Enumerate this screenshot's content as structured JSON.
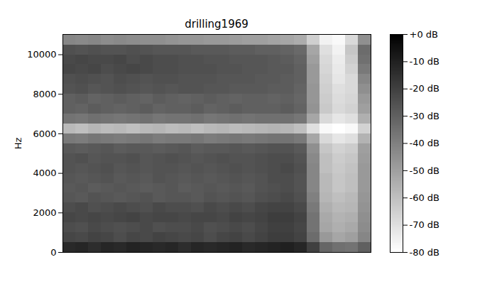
{
  "chart_data": {
    "type": "heatmap",
    "title": "drilling1969",
    "y_label": "Hz",
    "tick_labels": "y",
    "y": [
      0,
      500,
      1000,
      1500,
      2000,
      2500,
      3000,
      3500,
      4000,
      4500,
      5000,
      5500,
      6000,
      6500,
      7000,
      7500,
      8000,
      8500,
      9000,
      9500,
      10000,
      10500
    ],
    "ylim": [
      0,
      11025
    ],
    "yticks": [
      0,
      2000,
      4000,
      6000,
      8000,
      10000
    ],
    "cells": [
      [
        -13,
        -12,
        -14,
        -12,
        -13,
        -11,
        -12,
        -13,
        -12,
        -14,
        -12,
        -13,
        -12,
        -11,
        -13,
        -12,
        -11,
        -10,
        -12,
        -20,
        -32,
        -35,
        -36,
        -30
      ],
      [
        -22,
        -23,
        -21,
        -22,
        -24,
        -22,
        -23,
        -21,
        -22,
        -23,
        -22,
        -24,
        -22,
        -21,
        -23,
        -21,
        -19,
        -19,
        -21,
        -34,
        -48,
        -52,
        -50,
        -42
      ],
      [
        -24,
        -25,
        -23,
        -24,
        -25,
        -24,
        -23,
        -25,
        -24,
        -24,
        -23,
        -25,
        -24,
        -23,
        -24,
        -22,
        -20,
        -20,
        -22,
        -36,
        -52,
        -55,
        -53,
        -44
      ],
      [
        -22,
        -23,
        -22,
        -23,
        -22,
        -21,
        -23,
        -22,
        -22,
        -23,
        -22,
        -22,
        -23,
        -21,
        -22,
        -21,
        -19,
        -19,
        -21,
        -36,
        -53,
        -56,
        -55,
        -45
      ],
      [
        -24,
        -23,
        -25,
        -24,
        -23,
        -24,
        -25,
        -23,
        -24,
        -24,
        -25,
        -23,
        -24,
        -23,
        -24,
        -22,
        -21,
        -21,
        -23,
        -38,
        -55,
        -58,
        -57,
        -46
      ],
      [
        -27,
        -28,
        -26,
        -27,
        -28,
        -27,
        -26,
        -28,
        -27,
        -27,
        -28,
        -26,
        -27,
        -26,
        -27,
        -25,
        -24,
        -23,
        -25,
        -40,
        -57,
        -60,
        -58,
        -47
      ],
      [
        -28,
        -27,
        -29,
        -28,
        -27,
        -28,
        -29,
        -28,
        -27,
        -29,
        -28,
        -27,
        -28,
        -27,
        -28,
        -26,
        -25,
        -24,
        -26,
        -42,
        -58,
        -62,
        -60,
        -48
      ],
      [
        -27,
        -28,
        -27,
        -26,
        -28,
        -27,
        -28,
        -26,
        -27,
        -28,
        -27,
        -28,
        -27,
        -26,
        -27,
        -26,
        -24,
        -24,
        -26,
        -42,
        -58,
        -62,
        -60,
        -48
      ],
      [
        -26,
        -27,
        -26,
        -25,
        -27,
        -26,
        -27,
        -26,
        -26,
        -27,
        -26,
        -27,
        -26,
        -25,
        -26,
        -25,
        -24,
        -23,
        -25,
        -42,
        -60,
        -63,
        -61,
        -48
      ],
      [
        -26,
        -25,
        -27,
        -26,
        -26,
        -25,
        -27,
        -26,
        -25,
        -26,
        -27,
        -26,
        -25,
        -26,
        -26,
        -25,
        -24,
        -24,
        -26,
        -43,
        -60,
        -64,
        -62,
        -49
      ],
      [
        -28,
        -29,
        -28,
        -27,
        -29,
        -28,
        -28,
        -29,
        -28,
        -27,
        -29,
        -28,
        -28,
        -27,
        -28,
        -27,
        -26,
        -26,
        -28,
        -45,
        -62,
        -66,
        -64,
        -50
      ],
      [
        -38,
        -39,
        -37,
        -38,
        -39,
        -38,
        -37,
        -39,
        -38,
        -38,
        -37,
        -39,
        -38,
        -37,
        -38,
        -37,
        -36,
        -36,
        -38,
        -52,
        -68,
        -72,
        -70,
        -56
      ],
      [
        -58,
        -60,
        -57,
        -59,
        -58,
        -60,
        -58,
        -57,
        -59,
        -58,
        -60,
        -58,
        -57,
        -59,
        -58,
        -57,
        -56,
        -57,
        -60,
        -70,
        -78,
        -80,
        -78,
        -66
      ],
      [
        -36,
        -37,
        -35,
        -36,
        -37,
        -36,
        -35,
        -37,
        -36,
        -36,
        -35,
        -37,
        -36,
        -35,
        -36,
        -35,
        -35,
        -35,
        -37,
        -52,
        -68,
        -72,
        -70,
        -55
      ],
      [
        -30,
        -31,
        -29,
        -30,
        -31,
        -30,
        -29,
        -31,
        -30,
        -30,
        -29,
        -31,
        -30,
        -29,
        -30,
        -30,
        -30,
        -29,
        -31,
        -46,
        -63,
        -68,
        -66,
        -50
      ],
      [
        -30,
        -29,
        -31,
        -30,
        -29,
        -30,
        -31,
        -29,
        -30,
        -31,
        -30,
        -29,
        -30,
        -31,
        -30,
        -30,
        -31,
        -30,
        -32,
        -47,
        -64,
        -69,
        -67,
        -48
      ],
      [
        -26,
        -25,
        -27,
        -26,
        -25,
        -26,
        -27,
        -26,
        -27,
        -26,
        -26,
        -27,
        -27,
        -28,
        -28,
        -28,
        -29,
        -29,
        -31,
        -47,
        -65,
        -70,
        -68,
        -45
      ],
      [
        -25,
        -24,
        -25,
        -26,
        -24,
        -25,
        -26,
        -25,
        -25,
        -26,
        -26,
        -26,
        -27,
        -27,
        -27,
        -28,
        -28,
        -29,
        -30,
        -48,
        -66,
        -72,
        -68,
        -42
      ],
      [
        -22,
        -23,
        -22,
        -24,
        -23,
        -22,
        -23,
        -24,
        -24,
        -25,
        -25,
        -25,
        -26,
        -26,
        -27,
        -27,
        -28,
        -28,
        -30,
        -48,
        -67,
        -73,
        -66,
        -38
      ],
      [
        -23,
        -22,
        -23,
        -23,
        -22,
        -24,
        -23,
        -24,
        -24,
        -25,
        -25,
        -26,
        -26,
        -27,
        -27,
        -27,
        -28,
        -29,
        -31,
        -50,
        -68,
        -74,
        -64,
        -35
      ],
      [
        -25,
        -26,
        -25,
        -26,
        -26,
        -25,
        -26,
        -27,
        -27,
        -27,
        -28,
        -28,
        -28,
        -29,
        -29,
        -30,
        -30,
        -31,
        -33,
        -52,
        -70,
        -76,
        -62,
        -34
      ],
      [
        -42,
        -43,
        -42,
        -44,
        -43,
        -44,
        -45,
        -45,
        -46,
        -47,
        -47,
        -48,
        -48,
        -49,
        -50,
        -50,
        -51,
        -52,
        -54,
        -65,
        -76,
        -78,
        -68,
        -45
      ]
    ],
    "colorbar": {
      "range": [
        -80,
        0
      ],
      "ticks": [
        {
          "value": 0,
          "label": "+0 dB"
        },
        {
          "value": -10,
          "label": "-10 dB"
        },
        {
          "value": -20,
          "label": "-20 dB"
        },
        {
          "value": -30,
          "label": "-30 dB"
        },
        {
          "value": -40,
          "label": "-40 dB"
        },
        {
          "value": -50,
          "label": "-50 dB"
        },
        {
          "value": -60,
          "label": "-60 dB"
        },
        {
          "value": -70,
          "label": "-70 dB"
        },
        {
          "value": -80,
          "label": "-80 dB"
        }
      ]
    }
  }
}
